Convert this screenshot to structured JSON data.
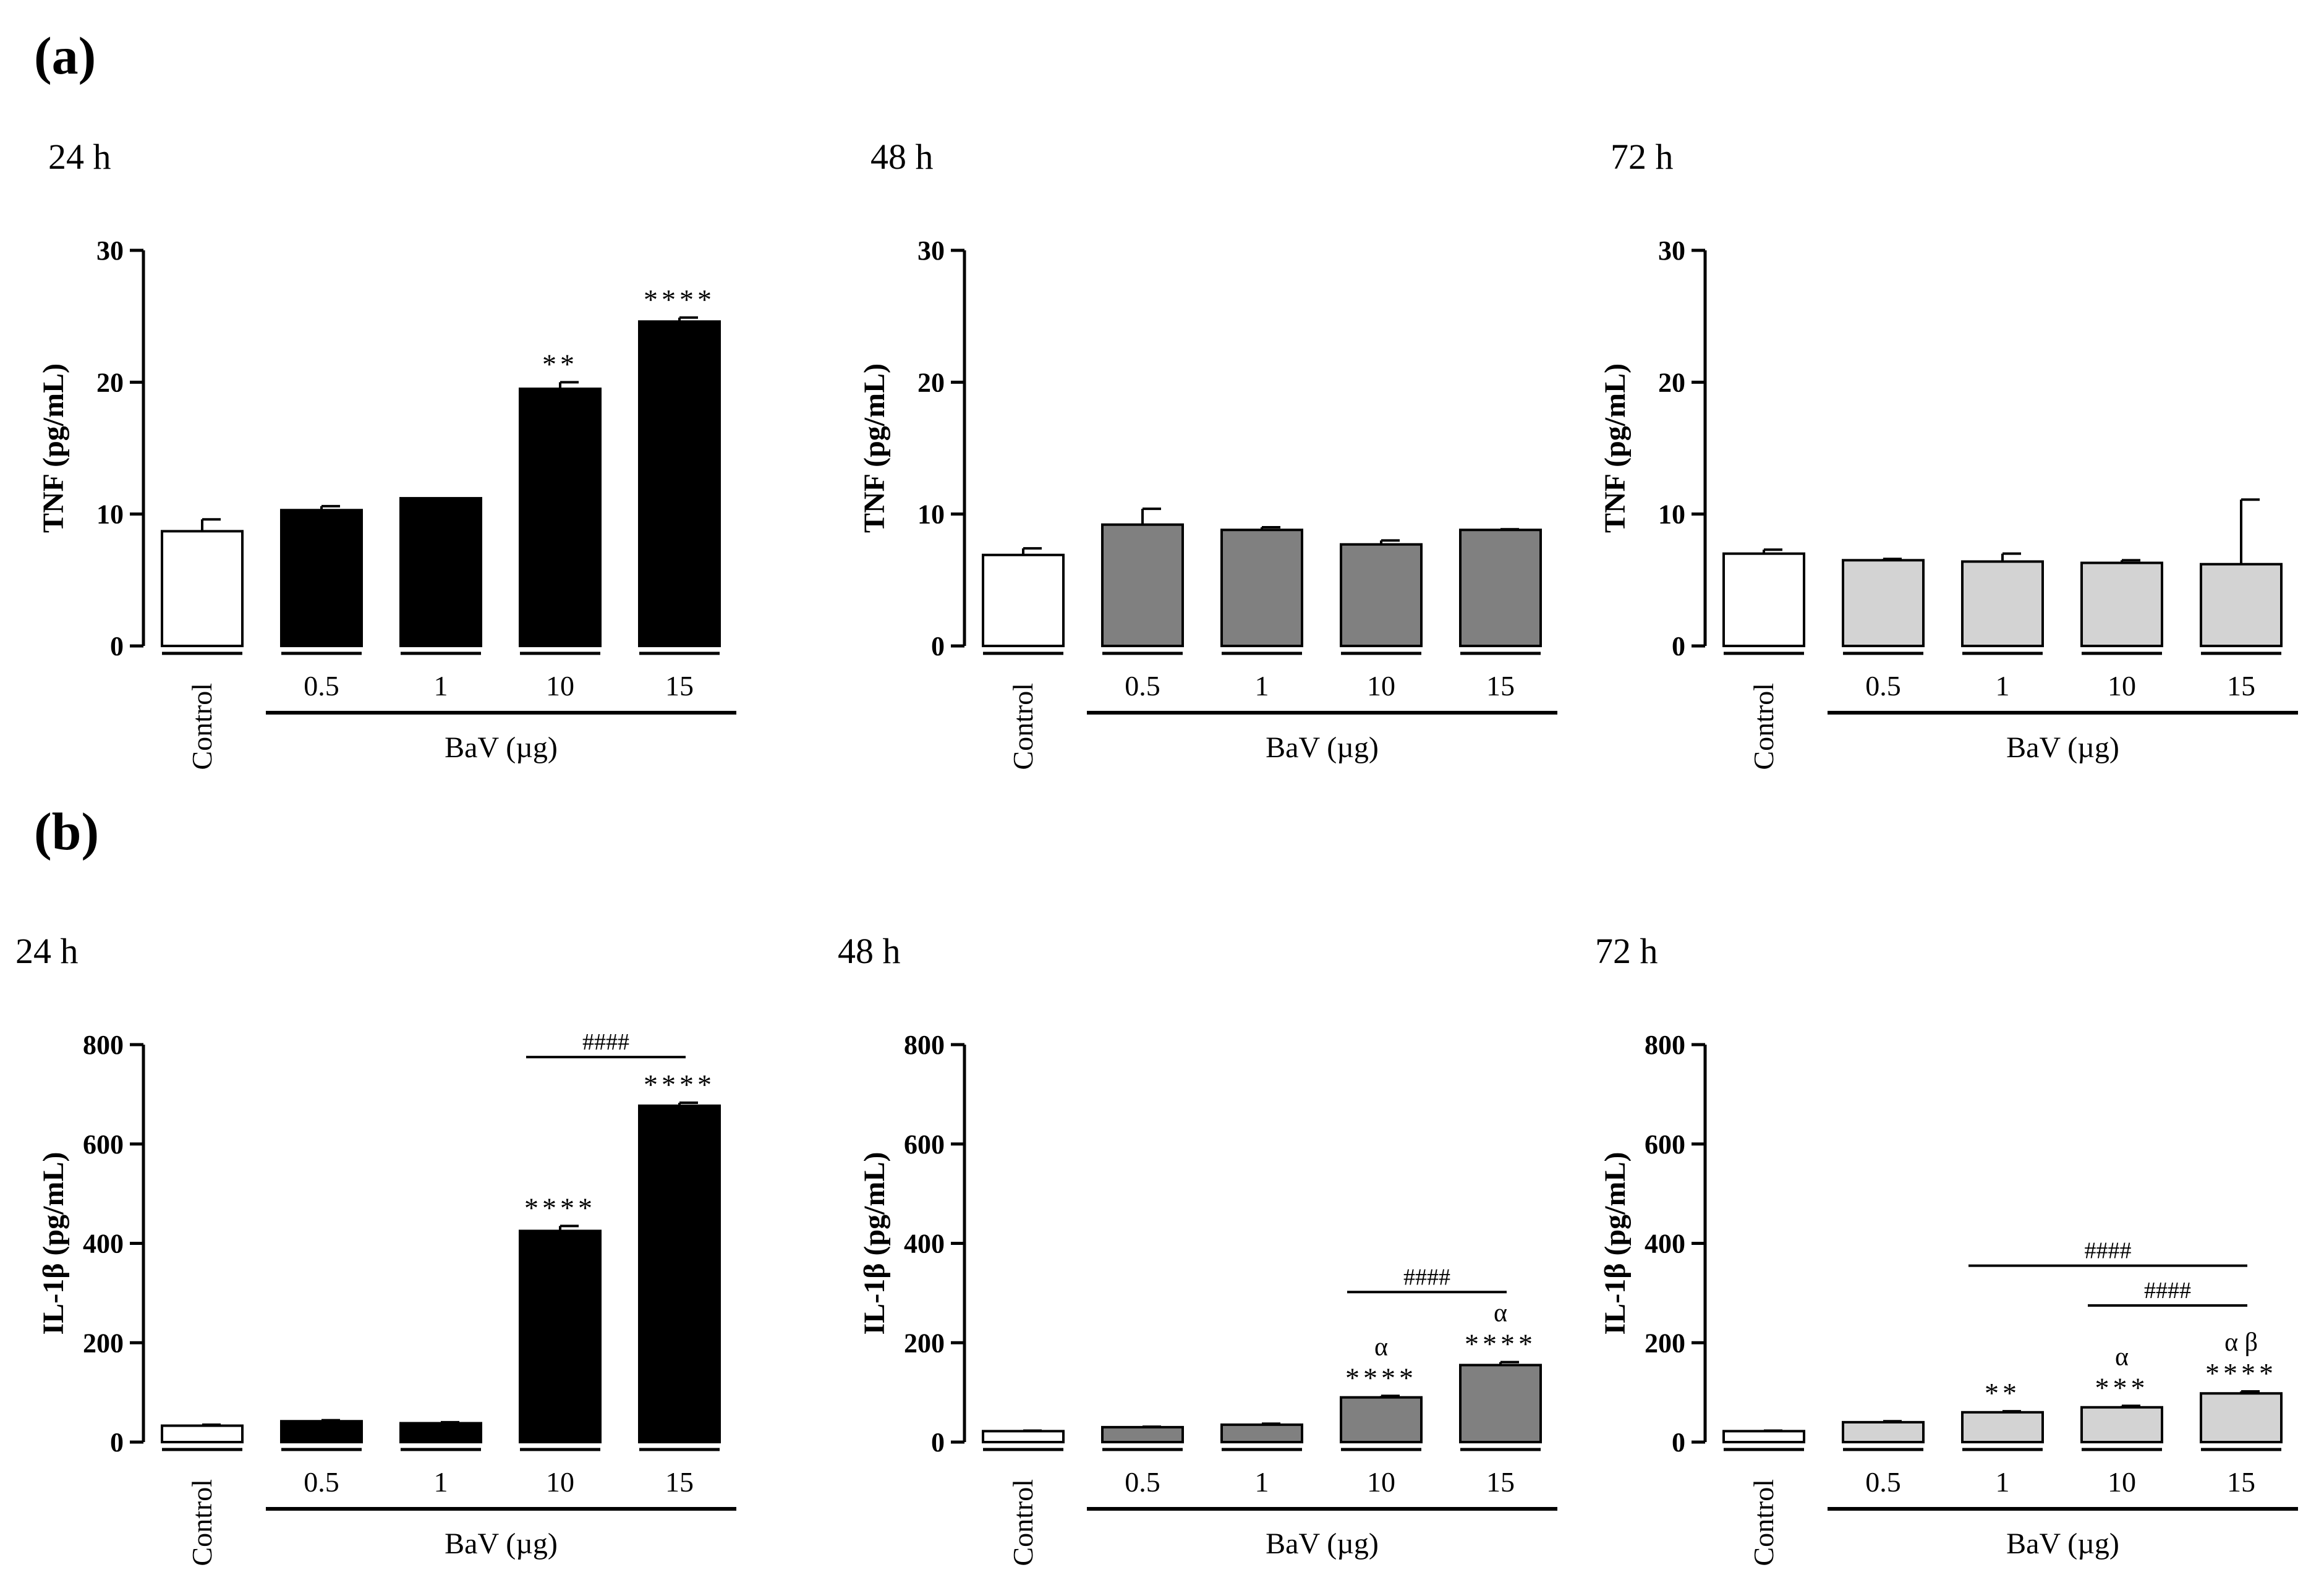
{
  "figure": {
    "panels": [
      {
        "label": "(a)",
        "id": "tnf"
      },
      {
        "label": "(b)",
        "id": "il1b"
      }
    ]
  },
  "chart_data": [
    {
      "type": "bar",
      "panel": "(a)",
      "timepoint": "24 h",
      "ylabel": "TNF (pg/mL)",
      "ylim": [
        0,
        30
      ],
      "yticks": [
        0,
        10,
        20,
        30
      ],
      "categories": [
        "Control",
        "0.5",
        "1",
        "10",
        "15"
      ],
      "group_label": "BaV (µg)",
      "values": [
        8.7,
        10.3,
        11.2,
        19.5,
        24.6
      ],
      "errors": [
        0.9,
        0.3,
        0,
        0.5,
        0.3
      ],
      "colors": [
        "#ffffff",
        "#000000",
        "#000000",
        "#000000",
        "#000000"
      ],
      "annotations": [
        "",
        "",
        "",
        "**",
        "****"
      ],
      "alpha_annotations": [
        "",
        "",
        "",
        "",
        ""
      ],
      "comparisons": []
    },
    {
      "type": "bar",
      "panel": "(a)",
      "timepoint": "48 h",
      "ylabel": "TNF (pg/mL)",
      "ylim": [
        0,
        30
      ],
      "yticks": [
        0,
        10,
        20,
        30
      ],
      "categories": [
        "Control",
        "0.5",
        "1",
        "10",
        "15"
      ],
      "group_label": "BaV (µg)",
      "values": [
        6.9,
        9.2,
        8.8,
        7.7,
        8.8
      ],
      "errors": [
        0.5,
        1.2,
        0.2,
        0.3,
        0.05
      ],
      "colors": [
        "#ffffff",
        "#808080",
        "#808080",
        "#808080",
        "#808080"
      ],
      "annotations": [
        "",
        "",
        "",
        "",
        ""
      ],
      "alpha_annotations": [
        "",
        "",
        "",
        "",
        ""
      ],
      "comparisons": []
    },
    {
      "type": "bar",
      "panel": "(a)",
      "timepoint": "72 h",
      "ylabel": "TNF (pg/mL)",
      "ylim": [
        0,
        30
      ],
      "yticks": [
        0,
        10,
        20,
        30
      ],
      "categories": [
        "Control",
        "0.5",
        "1",
        "10",
        "15"
      ],
      "group_label": "BaV (µg)",
      "values": [
        7.0,
        6.5,
        6.4,
        6.3,
        6.2
      ],
      "errors": [
        0.3,
        0.1,
        0.6,
        0.2,
        4.9
      ],
      "colors": [
        "#ffffff",
        "#d3d3d3",
        "#d3d3d3",
        "#d3d3d3",
        "#d3d3d3"
      ],
      "annotations": [
        "",
        "",
        "",
        "",
        ""
      ],
      "alpha_annotations": [
        "",
        "",
        "",
        "",
        ""
      ],
      "comparisons": []
    },
    {
      "type": "bar",
      "panel": "(b)",
      "timepoint": "24 h",
      "ylabel": "IL-1β (pg/mL)",
      "ylim": [
        0,
        800
      ],
      "yticks": [
        0,
        200,
        400,
        600,
        800
      ],
      "categories": [
        "Control",
        "0.5",
        "1",
        "10",
        "15"
      ],
      "group_label": "BaV (µg)",
      "values": [
        33,
        42,
        38,
        425,
        677
      ],
      "errors": [
        2,
        2,
        2,
        10,
        6
      ],
      "colors": [
        "#ffffff",
        "#000000",
        "#000000",
        "#000000",
        "#000000"
      ],
      "annotations": [
        "",
        "",
        "",
        "****",
        "****"
      ],
      "alpha_annotations": [
        "",
        "",
        "",
        "",
        ""
      ],
      "comparisons": [
        {
          "from": 3,
          "to": 4,
          "label": "####",
          "y": 775
        }
      ]
    },
    {
      "type": "bar",
      "panel": "(b)",
      "timepoint": "48 h",
      "ylabel": "IL-1β (pg/mL)",
      "ylim": [
        0,
        800
      ],
      "yticks": [
        0,
        200,
        400,
        600,
        800
      ],
      "categories": [
        "Control",
        "0.5",
        "1",
        "10",
        "15"
      ],
      "group_label": "BaV (µg)",
      "values": [
        22,
        30,
        35,
        90,
        155
      ],
      "errors": [
        1,
        1,
        2,
        3,
        6
      ],
      "colors": [
        "#ffffff",
        "#808080",
        "#808080",
        "#808080",
        "#808080"
      ],
      "annotations": [
        "",
        "",
        "",
        "****",
        "****"
      ],
      "alpha_annotations": [
        "",
        "",
        "",
        "α",
        "α"
      ],
      "comparisons": [
        {
          "from": 3,
          "to": 4,
          "label": "####",
          "y": 302
        }
      ]
    },
    {
      "type": "bar",
      "panel": "(b)",
      "timepoint": "72 h",
      "ylabel": "IL-1β (pg/mL)",
      "ylim": [
        0,
        800
      ],
      "yticks": [
        0,
        200,
        400,
        600,
        800
      ],
      "categories": [
        "Control",
        "0.5",
        "1",
        "10",
        "15"
      ],
      "group_label": "BaV (µg)",
      "values": [
        22,
        40,
        60,
        70,
        98
      ],
      "errors": [
        1,
        2,
        2,
        3,
        4
      ],
      "colors": [
        "#ffffff",
        "#d3d3d3",
        "#d3d3d3",
        "#d3d3d3",
        "#d3d3d3"
      ],
      "annotations": [
        "",
        "",
        "**",
        "***",
        "****"
      ],
      "alpha_annotations": [
        "",
        "",
        "",
        "α",
        "α β"
      ],
      "comparisons": [
        {
          "from": 2,
          "to": 4,
          "label": "####",
          "y": 355
        },
        {
          "from": 3,
          "to": 4,
          "label": "####",
          "y": 275
        }
      ]
    }
  ]
}
